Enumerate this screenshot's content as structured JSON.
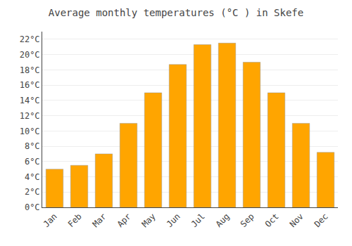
{
  "chart_data": {
    "type": "bar",
    "title": "Average monthly temperatures (°C ) in Skefe",
    "categories": [
      "Jan",
      "Feb",
      "Mar",
      "Apr",
      "May",
      "Jun",
      "Jul",
      "Aug",
      "Sep",
      "Oct",
      "Nov",
      "Dec"
    ],
    "values": [
      5.0,
      5.5,
      7.0,
      11.0,
      15.0,
      18.7,
      21.3,
      21.5,
      19.0,
      15.0,
      11.0,
      7.2
    ],
    "color": "#FFA500",
    "ylim": [
      0,
      23
    ],
    "yticks": [
      {
        "value": 0,
        "label": "0°C"
      },
      {
        "value": 2,
        "label": "2°C"
      },
      {
        "value": 4,
        "label": "4°C"
      },
      {
        "value": 6,
        "label": "6°C"
      },
      {
        "value": 8,
        "label": "8°C"
      },
      {
        "value": 10,
        "label": "10°C"
      },
      {
        "value": 12,
        "label": "12°C"
      },
      {
        "value": 14,
        "label": "14°C"
      },
      {
        "value": 16,
        "label": "16°C"
      },
      {
        "value": 18,
        "label": "18°C"
      },
      {
        "value": 20,
        "label": "20°C"
      },
      {
        "value": 22,
        "label": "22°C"
      }
    ],
    "grid": true
  }
}
